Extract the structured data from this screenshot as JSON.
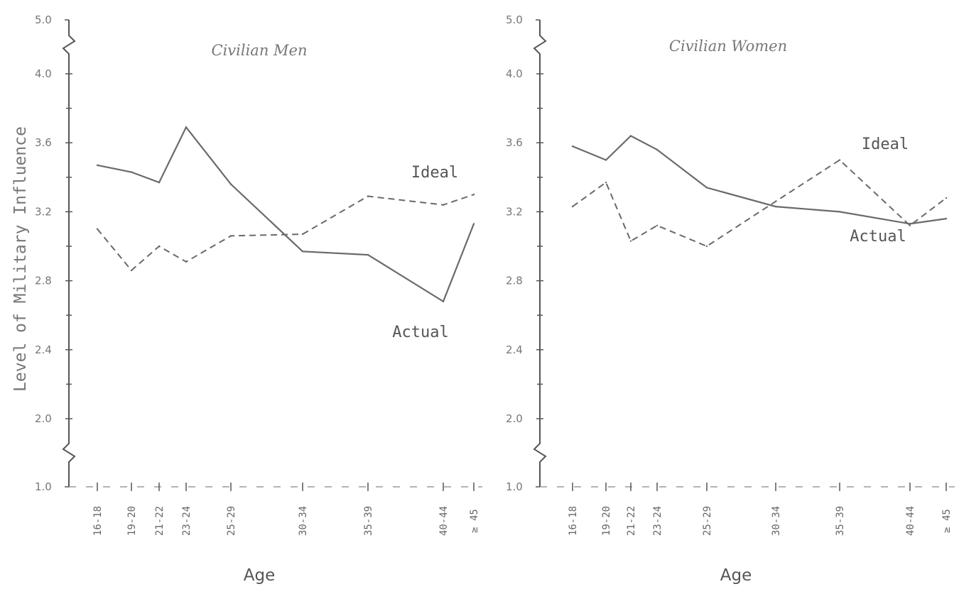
{
  "chart_data": [
    {
      "type": "line",
      "title": "Civilian Men",
      "xlabel": "Age",
      "ylabel": "Level of Military Influence",
      "categories": [
        "16-18",
        "19-20",
        "21-22",
        "23-24",
        "25-29",
        "30-34",
        "35-39",
        "40-44",
        "≥ 45"
      ],
      "y_ticks": [
        "1.0",
        "2.0",
        "2.4",
        "2.8",
        "3.2",
        "3.6",
        "4.0",
        "5.0"
      ],
      "axis_break": true,
      "series": [
        {
          "name": "Actual",
          "style": "solid",
          "values": [
            3.47,
            3.43,
            3.37,
            3.69,
            3.36,
            2.97,
            2.95,
            2.68,
            3.13
          ]
        },
        {
          "name": "Ideal",
          "style": "dashed",
          "values": [
            3.1,
            2.86,
            3.0,
            2.91,
            3.06,
            3.07,
            3.29,
            3.24,
            3.3
          ]
        }
      ]
    },
    {
      "type": "line",
      "title": "Civilian Women",
      "xlabel": "Age",
      "ylabel": "",
      "categories": [
        "16-18",
        "19-20",
        "21-22",
        "23-24",
        "25-29",
        "30-34",
        "35-39",
        "40-44",
        "≥ 45"
      ],
      "y_ticks": [
        "1.0",
        "2.0",
        "2.4",
        "2.8",
        "3.2",
        "3.6",
        "4.0",
        "5.0"
      ],
      "axis_break": true,
      "series": [
        {
          "name": "Actual",
          "style": "solid",
          "values": [
            3.58,
            3.5,
            3.64,
            3.56,
            3.34,
            3.23,
            3.2,
            3.13,
            3.16
          ]
        },
        {
          "name": "Ideal",
          "style": "dashed",
          "values": [
            3.23,
            3.37,
            3.03,
            3.12,
            3.0,
            3.26,
            3.5,
            3.12,
            3.28
          ]
        }
      ]
    }
  ],
  "colors": {
    "line": "#6a6a6a",
    "axis": "#555555",
    "text": "#777777"
  }
}
